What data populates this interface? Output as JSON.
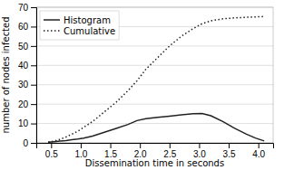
{
  "chart_data": {
    "type": "line",
    "xlabel": "Dissemination time in seconds",
    "ylabel": "number of nodes infected",
    "x": [
      0.45,
      0.55,
      0.65,
      0.75,
      0.85,
      0.95,
      1.05,
      1.2,
      1.4,
      1.6,
      1.8,
      1.95,
      2.1,
      2.3,
      2.5,
      2.7,
      2.9,
      3.05,
      3.2,
      3.4,
      3.6,
      3.8,
      3.95,
      4.1
    ],
    "series": [
      {
        "name": "Histogram",
        "color": "#222222",
        "line_style": "solid",
        "values": [
          0.3,
          0.6,
          0.9,
          1.2,
          1.6,
          2.0,
          2.5,
          3.5,
          5.5,
          7.5,
          9.5,
          11.5,
          12.5,
          13.2,
          13.8,
          14.5,
          15.0,
          15.2,
          14.0,
          11.0,
          7.5,
          4.5,
          2.5,
          1.0
        ]
      },
      {
        "name": "Cumulative",
        "color": "#222222",
        "line_style": "dotted",
        "values": [
          0.3,
          0.9,
          1.8,
          3.0,
          4.5,
          6.0,
          8.0,
          11.0,
          16.0,
          21.0,
          27.0,
          32.0,
          38.0,
          44.0,
          50.0,
          55.0,
          59.0,
          61.5,
          63.0,
          64.0,
          64.5,
          64.8,
          65.0,
          65.2
        ]
      }
    ],
    "xlim": [
      0.25,
      4.25
    ],
    "ylim": [
      0,
      70
    ],
    "xticks": [
      0.5,
      {
        "value": 1.0,
        "label": "1.0"
      },
      1.5,
      {
        "value": 2.0,
        "label": "2.0"
      },
      2.5,
      {
        "value": 3.0,
        "label": "3.0"
      },
      3.5,
      {
        "value": 4.0,
        "label": "4.0"
      }
    ],
    "yticks": [
      0,
      10,
      20,
      30,
      40,
      50,
      60,
      70
    ],
    "grid": "y",
    "legend": "top-left"
  }
}
